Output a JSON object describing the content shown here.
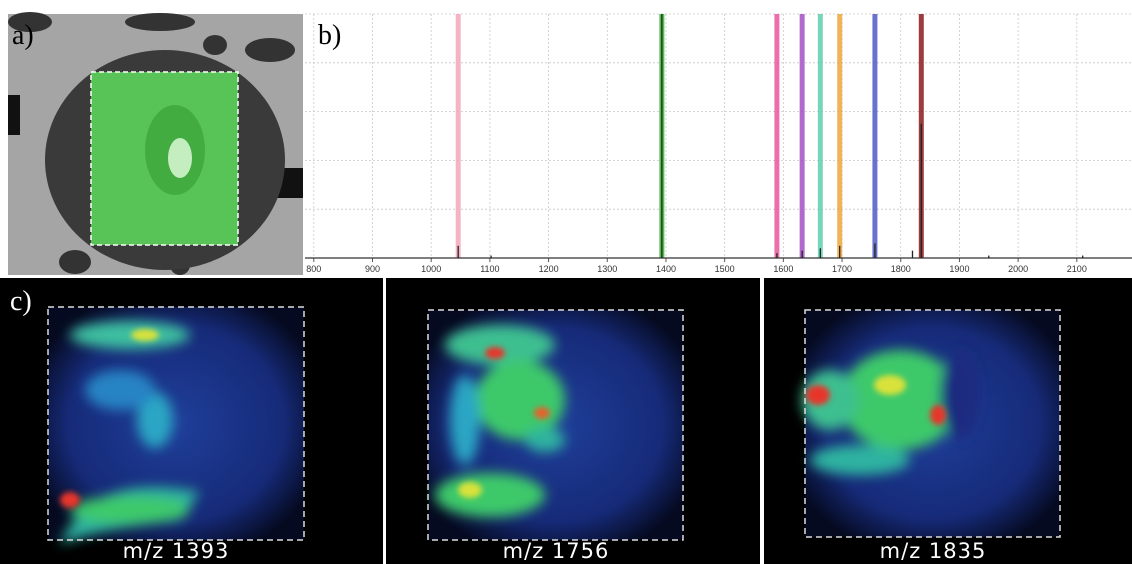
{
  "panels": {
    "a": {
      "label": "a)"
    },
    "c": {
      "label": "c)",
      "images": [
        {
          "caption": "m/z 1393"
        },
        {
          "caption": "m/z 1756"
        },
        {
          "caption": "m/z 1835"
        }
      ]
    }
  },
  "chart_data": {
    "type": "spectrum",
    "label": "b)",
    "xlim": [
      785,
      2194
    ],
    "ylim": [
      0,
      100
    ],
    "xticks": [
      800,
      900,
      1000,
      1100,
      1200,
      1300,
      1400,
      1500,
      1600,
      1700,
      1800,
      1900,
      2000,
      2100
    ],
    "yticks": [
      0,
      20,
      40,
      60,
      80,
      100
    ],
    "grid": true,
    "highlights": {
      "x": [
        1046,
        1393,
        1589,
        1632,
        1663,
        1696,
        1756,
        1835
      ],
      "colors": [
        "#f2a7b8",
        "#33b533",
        "#e8579a",
        "#a54fc4",
        "#5fcfae",
        "#f0a53a",
        "#4f5bc4",
        "#8b1a1a"
      ]
    },
    "series": [
      {
        "color": "#222",
        "x": [
          1046,
          1102,
          1393,
          1589,
          1632,
          1663,
          1696,
          1756,
          1820,
          1835,
          1950,
          2110
        ],
        "values": [
          5,
          1,
          100,
          2,
          3,
          4,
          5,
          6,
          3,
          55,
          1,
          1
        ]
      }
    ]
  }
}
